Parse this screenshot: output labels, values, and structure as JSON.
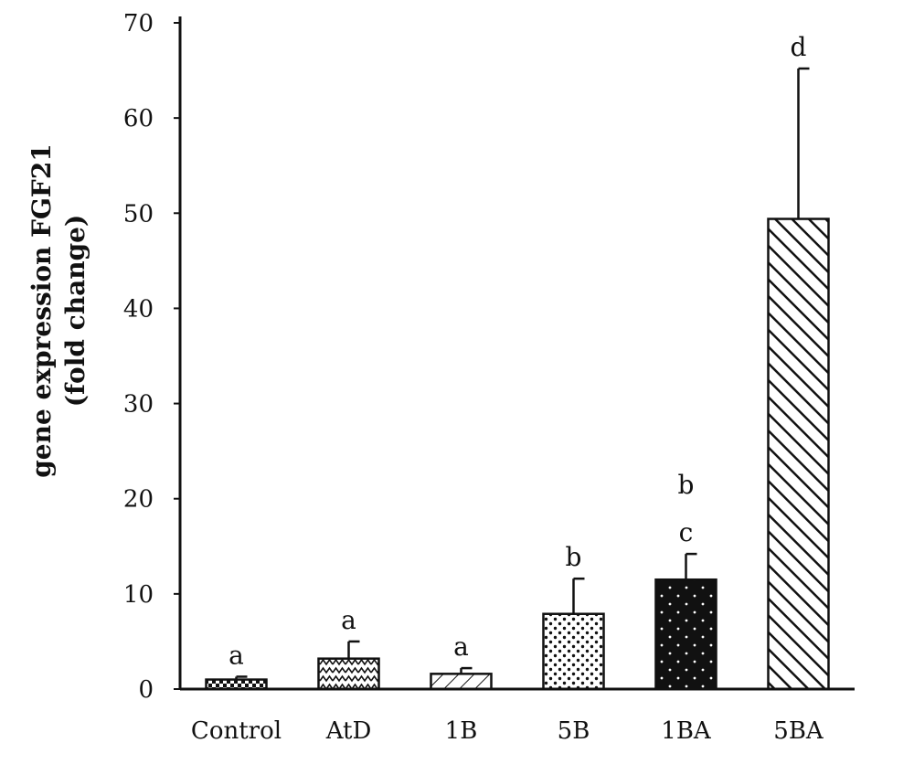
{
  "chart_data": {
    "type": "bar",
    "categories": [
      "Control",
      "AtD",
      "1B",
      "5B",
      "1BA",
      "5BA"
    ],
    "values": [
      1.0,
      3.2,
      1.6,
      7.9,
      11.5,
      49.4
    ],
    "error_upper": [
      1.3,
      5.0,
      2.2,
      11.6,
      14.2,
      65.2
    ],
    "significance_labels": [
      "a",
      "a",
      "a",
      "b",
      "b\nc",
      "d"
    ],
    "patterns": [
      "checker",
      "zigzag",
      "diagonal-sparse",
      "dots",
      "dark-dots",
      "diagonal-dense"
    ],
    "title": "",
    "xlabel": "",
    "ylabel_line1": "gene expression FGF21",
    "ylabel_line2": "(fold change)",
    "ylim": [
      0,
      70
    ],
    "yticks": [
      0,
      10,
      20,
      30,
      40,
      50,
      60,
      70
    ],
    "grid": false,
    "legend": "none",
    "colors": {
      "ink": "#111111",
      "background": "#ffffff"
    }
  }
}
